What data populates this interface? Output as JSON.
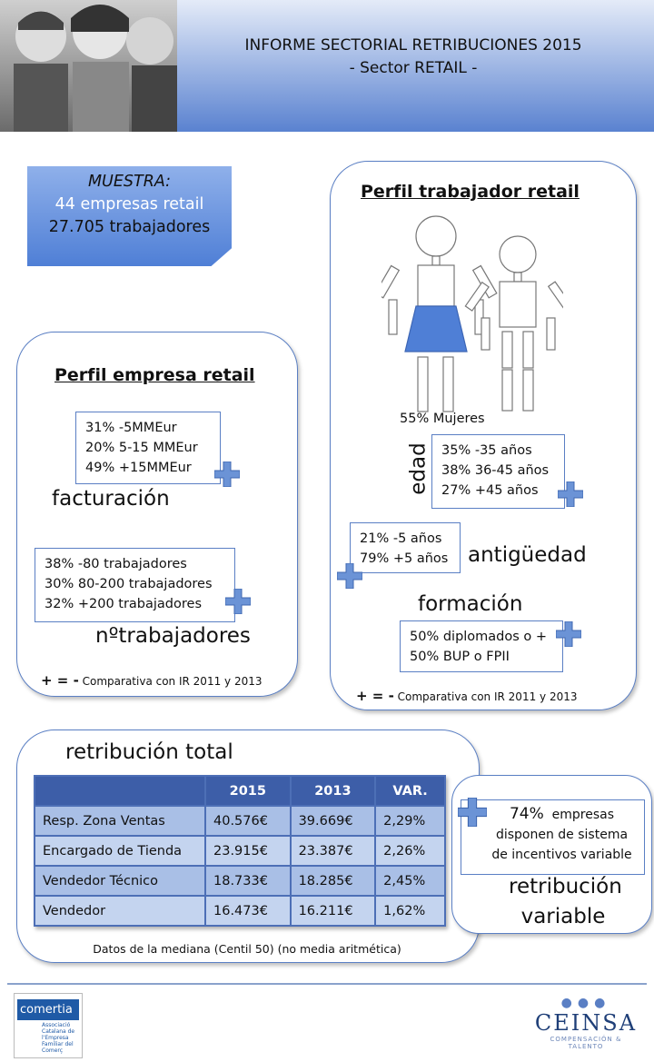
{
  "header": {
    "title": "INFORME SECTORIAL RETRIBUCIONES 2015",
    "subtitle": "- Sector RETAIL -"
  },
  "muestra": {
    "label": "MUESTRA:",
    "lines": [
      "44 empresas retail",
      "27.705 trabajadores"
    ]
  },
  "empresa": {
    "title": "Perfil empresa retail",
    "facturacion": {
      "label": "facturación",
      "lines": [
        "31% -5MMEur",
        "20% 5-15 MMEur",
        "49% +15MMEur"
      ]
    },
    "trabajadores": {
      "label": "nºtrabajadores",
      "lines": [
        "38% -80 trabajadores",
        "30% 80-200 trabajadores",
        "32% +200 trabajadores"
      ]
    },
    "legend_symbols": "+ = -",
    "legend": "Comparativa con IR 2011 y 2013"
  },
  "trabajador": {
    "title": "Perfil trabajador retail",
    "mujeres": "55% Mujeres",
    "edad": {
      "label": "edad",
      "lines": [
        "35% -35 años",
        "38% 36-45 años",
        "27% +45 años"
      ]
    },
    "antiguedad": {
      "label": "antigüedad",
      "lines": [
        "21% -5 años",
        "79% +5 años"
      ]
    },
    "formacion": {
      "label": "formación",
      "lines": [
        "50% diplomados o +",
        "50% BUP o FPII"
      ]
    },
    "legend_symbols": "+ = -",
    "legend": "Comparativa con IR 2011 y 2013"
  },
  "retribucion_total": {
    "title": "retribución total",
    "table": {
      "header": [
        "2015",
        "2013",
        "VAR."
      ],
      "rows": [
        [
          "Resp. Zona Ventas",
          "40.576€",
          "39.669€",
          "2,29%"
        ],
        [
          "Encargado de Tienda",
          "23.915€",
          "23.387€",
          "2,26%"
        ],
        [
          "Vendedor Técnico",
          "18.733€",
          "18.285€",
          "2,45%"
        ],
        [
          "Vendedor",
          "16.473€",
          "16.211€",
          "1,62%"
        ]
      ]
    },
    "note": "Datos de la mediana (Centil 50) (no media aritmética)"
  },
  "retribucion_variable": {
    "percent": "74%",
    "text": "empresas disponen de sistema de incentivos variable",
    "title": "retribución variable"
  },
  "footer": {
    "left_logo": "comertia",
    "left_sub": "Associació Catalana de l'Empresa Familiar del Comerç",
    "right_logo": "CEINSA",
    "right_sub": "COMPENSACIÓN & TALENTO"
  }
}
